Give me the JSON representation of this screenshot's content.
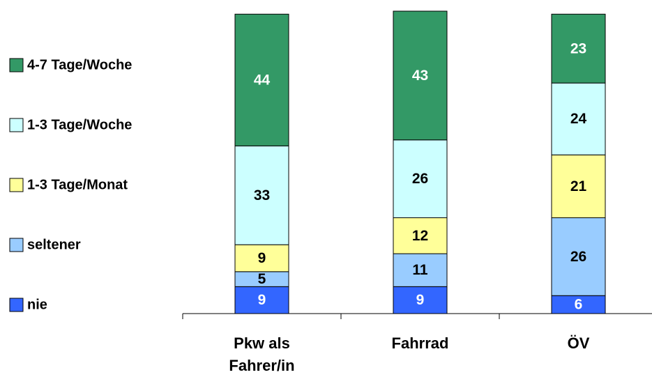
{
  "chart_data": {
    "type": "stacked_bar",
    "categories": [
      "Pkw als Fahrer/in",
      "Fahrrad",
      "ÖV"
    ],
    "series": [
      {
        "name": "nie",
        "color": "#3366ff",
        "values": [
          9,
          9,
          6
        ]
      },
      {
        "name": "seltener",
        "color": "#99ccff",
        "values": [
          5,
          11,
          26
        ]
      },
      {
        "name": "1-3 Tage/Monat",
        "color": "#ffff99",
        "values": [
          9,
          12,
          21
        ]
      },
      {
        "name": "1-3 Tage/Woche",
        "color": "#ccffff",
        "values": [
          33,
          26,
          24
        ]
      },
      {
        "name": "4-7 Tage/Woche",
        "color": "#339966",
        "values": [
          44,
          43,
          23
        ]
      }
    ],
    "legend": "left"
  }
}
